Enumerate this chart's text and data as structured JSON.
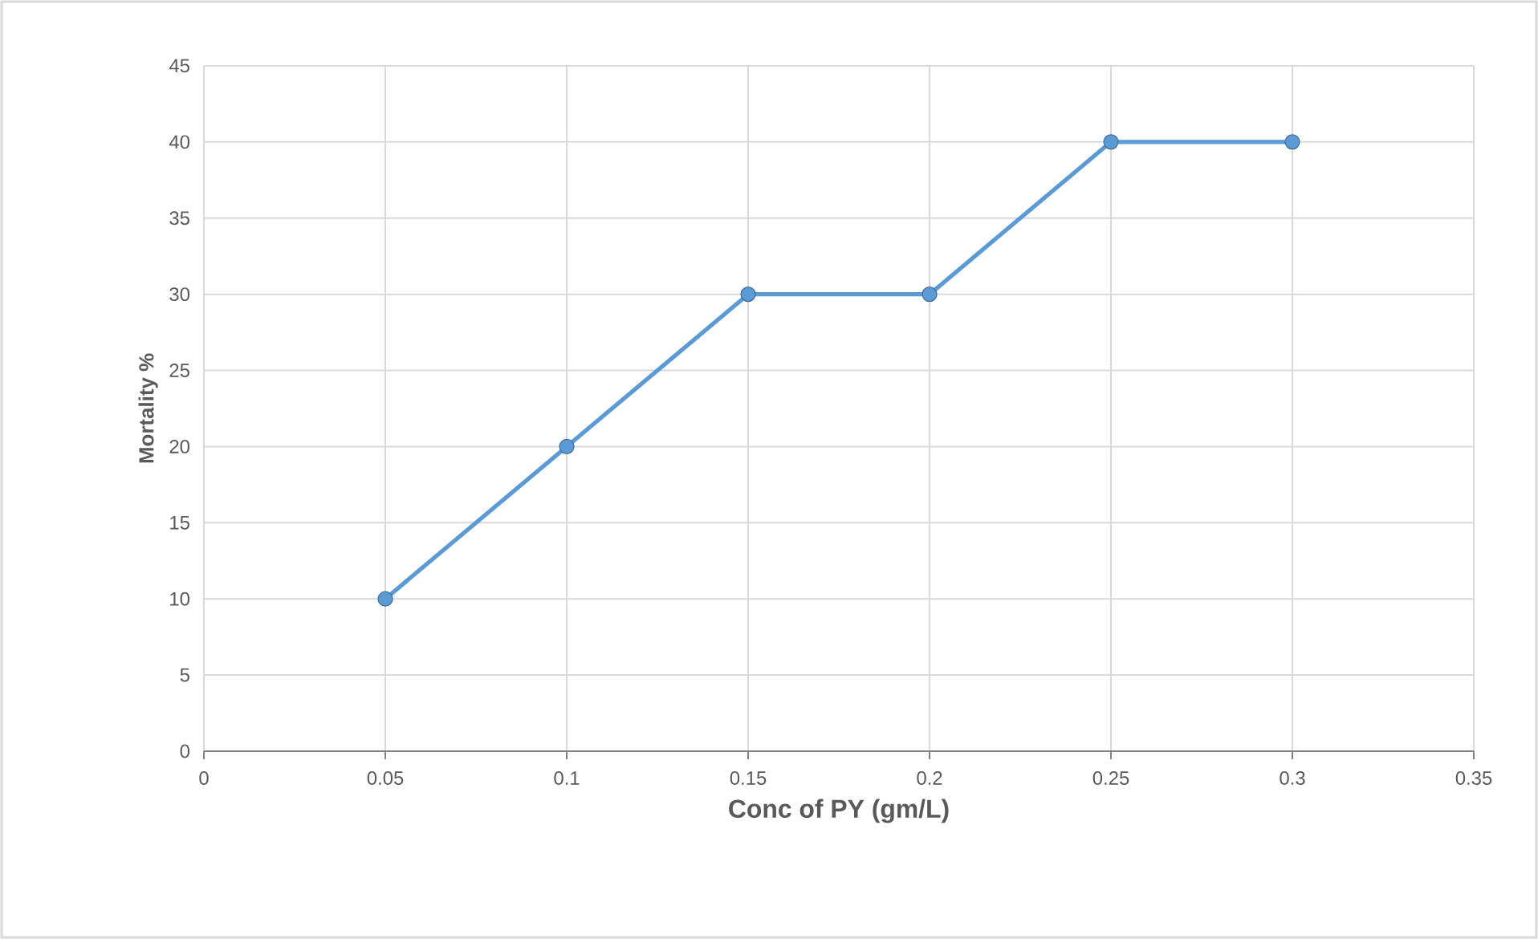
{
  "chart_data": {
    "type": "line",
    "xlabel": "Conc of PY (gm/L)",
    "ylabel": "Mortality %",
    "x": [
      0.05,
      0.1,
      0.15,
      0.2,
      0.25,
      0.3
    ],
    "series": [
      {
        "color": "#5b9bd5",
        "values": [
          10,
          20,
          30,
          30,
          40,
          40
        ]
      }
    ],
    "xlim": [
      0,
      0.35
    ],
    "xticks": [
      0,
      0.05,
      0.1,
      0.15,
      0.2,
      0.25,
      0.3,
      0.35
    ],
    "ylim": [
      0,
      45
    ],
    "yticks": [
      0,
      5,
      10,
      15,
      20,
      25,
      30,
      35,
      40,
      45
    ],
    "grid": true,
    "marker": "circle",
    "line_style": "solid"
  }
}
